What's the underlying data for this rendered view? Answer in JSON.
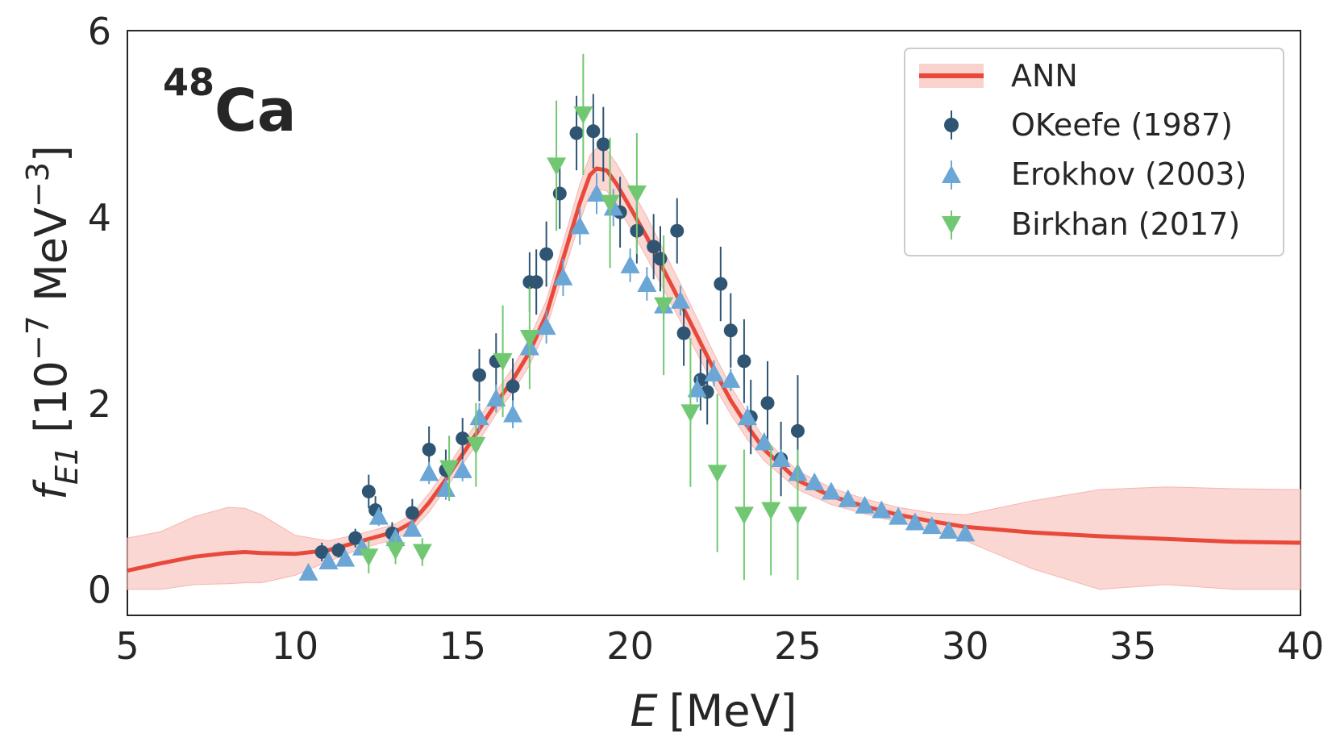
{
  "chart_data": {
    "type": "scatter",
    "annotation": {
      "mass": "48",
      "element": "Ca"
    },
    "xlabel": {
      "symbol": "E",
      "unit": "[MeV]"
    },
    "ylabel": {
      "symbol": "f",
      "sub": "E1",
      "unit_open": "[10",
      "exp": "−7",
      "unit_mid": " MeV",
      "exp2": "−3",
      "unit_close": "]"
    },
    "xlim": [
      5,
      40
    ],
    "ylim": [
      -0.28,
      6
    ],
    "xticks": [
      5,
      10,
      15,
      20,
      25,
      30,
      35,
      40
    ],
    "yticks": [
      0,
      2,
      4,
      6
    ],
    "grid": false,
    "legend_position": "top-right",
    "colors": {
      "ann_line": "#e8493a",
      "ann_band": "#f6b6ae",
      "okeefe": "#2f5573",
      "erokhov": "#6aa6d6",
      "birkhan": "#72c872"
    },
    "ann": {
      "name": "ANN",
      "x": [
        5,
        6,
        7,
        8,
        8.5,
        9,
        10,
        11,
        12,
        13,
        13.5,
        14,
        14.5,
        15,
        15.5,
        16,
        16.5,
        17,
        17.5,
        18,
        18.5,
        18.8,
        19,
        19.3,
        19.6,
        20,
        20.5,
        21,
        21.5,
        22,
        22.5,
        23,
        23.5,
        24,
        25,
        26,
        27,
        28,
        29,
        30,
        32,
        34,
        36,
        38,
        40
      ],
      "y": [
        0.2,
        0.28,
        0.35,
        0.39,
        0.4,
        0.39,
        0.38,
        0.42,
        0.52,
        0.62,
        0.72,
        0.93,
        1.18,
        1.45,
        1.72,
        2.0,
        2.25,
        2.55,
        2.95,
        3.55,
        4.15,
        4.45,
        4.52,
        4.5,
        4.35,
        4.1,
        3.78,
        3.43,
        3.08,
        2.72,
        2.36,
        2.03,
        1.75,
        1.5,
        1.17,
        1.0,
        0.89,
        0.8,
        0.73,
        0.67,
        0.61,
        0.57,
        0.54,
        0.51,
        0.5
      ],
      "lower": [
        0.0,
        0.0,
        0.05,
        0.06,
        0.07,
        0.07,
        0.15,
        0.3,
        0.44,
        0.54,
        0.63,
        0.83,
        1.08,
        1.34,
        1.6,
        1.88,
        2.12,
        2.41,
        2.8,
        3.38,
        3.95,
        4.25,
        4.3,
        4.28,
        4.13,
        3.88,
        3.56,
        3.22,
        2.88,
        2.53,
        2.19,
        1.88,
        1.61,
        1.38,
        1.07,
        0.91,
        0.81,
        0.72,
        0.64,
        0.52,
        0.22,
        0.0,
        0.05,
        0.0,
        0.0
      ],
      "upper": [
        0.55,
        0.62,
        0.78,
        0.88,
        0.87,
        0.8,
        0.58,
        0.52,
        0.6,
        0.7,
        0.81,
        1.03,
        1.28,
        1.56,
        1.84,
        2.12,
        2.38,
        2.7,
        3.1,
        3.72,
        4.35,
        4.66,
        4.74,
        4.72,
        4.57,
        4.32,
        4.0,
        3.64,
        3.28,
        2.91,
        2.53,
        2.18,
        1.89,
        1.62,
        1.27,
        1.09,
        0.97,
        0.88,
        0.82,
        0.8,
        0.95,
        1.07,
        1.1,
        1.08,
        1.07
      ]
    },
    "okeefe": {
      "name": "OKeefe (1987)",
      "x": [
        10.8,
        11.3,
        11.8,
        12.2,
        12.4,
        12.9,
        13.5,
        14.0,
        14.5,
        15.0,
        15.5,
        16.0,
        16.5,
        17.0,
        17.2,
        17.5,
        17.9,
        18.4,
        18.9,
        19.2,
        19.7,
        20.2,
        20.7,
        20.9,
        21.4,
        21.6,
        22.1,
        22.3,
        22.7,
        23.0,
        23.4,
        23.6,
        24.1,
        24.5,
        25.0
      ],
      "y": [
        0.4,
        0.42,
        0.55,
        1.05,
        0.85,
        0.6,
        0.82,
        1.5,
        1.28,
        1.62,
        2.3,
        2.45,
        2.18,
        3.3,
        3.3,
        3.6,
        4.25,
        4.9,
        4.92,
        4.78,
        4.05,
        3.85,
        3.68,
        3.55,
        3.85,
        2.75,
        2.25,
        2.12,
        3.28,
        2.78,
        2.45,
        1.85,
        2.0,
        1.4,
        1.7
      ],
      "err": [
        0.1,
        0.08,
        0.1,
        0.18,
        0.15,
        0.12,
        0.15,
        0.25,
        0.22,
        0.22,
        0.28,
        0.3,
        0.3,
        0.32,
        0.35,
        0.35,
        0.38,
        0.4,
        0.4,
        0.4,
        0.38,
        0.35,
        0.35,
        0.35,
        0.35,
        0.35,
        0.33,
        0.35,
        0.4,
        0.4,
        0.45,
        0.4,
        0.45,
        0.4,
        0.6
      ]
    },
    "erokhov": {
      "name": "Erokhov (2003)",
      "x": [
        10.4,
        11.0,
        11.5,
        12.0,
        12.5,
        13.0,
        13.5,
        14.0,
        14.5,
        15.0,
        15.5,
        16.0,
        16.5,
        17.0,
        17.5,
        18.0,
        18.5,
        19.0,
        19.5,
        20.0,
        20.5,
        21.0,
        21.5,
        22.0,
        22.5,
        23.0,
        23.5,
        24.0,
        24.5,
        25.0,
        25.5,
        26.0,
        26.5,
        27.0,
        27.5,
        28.0,
        28.5,
        29.0,
        29.5,
        30.0
      ],
      "y": [
        0.18,
        0.3,
        0.33,
        0.45,
        0.78,
        0.55,
        0.65,
        1.25,
        1.08,
        1.28,
        1.85,
        2.05,
        1.88,
        2.6,
        2.82,
        3.35,
        3.9,
        4.25,
        4.1,
        3.48,
        3.28,
        3.05,
        3.1,
        2.15,
        2.32,
        2.25,
        1.85,
        1.58,
        1.4,
        1.25,
        1.15,
        1.05,
        0.97,
        0.9,
        0.85,
        0.78,
        0.72,
        0.68,
        0.63,
        0.6
      ],
      "err": [
        0.05,
        0.06,
        0.06,
        0.08,
        0.1,
        0.08,
        0.08,
        0.12,
        0.12,
        0.12,
        0.15,
        0.15,
        0.15,
        0.18,
        0.18,
        0.2,
        0.2,
        0.22,
        0.2,
        0.18,
        0.18,
        0.16,
        0.16,
        0.14,
        0.14,
        0.12,
        0.12,
        0.1,
        0.1,
        0.08,
        0.07,
        0.06,
        0.06,
        0.05,
        0.05,
        0.05,
        0.04,
        0.04,
        0.04,
        0.04
      ]
    },
    "birkhan": {
      "name": "Birkhan (2017)",
      "x": [
        12.2,
        13.0,
        13.8,
        14.6,
        15.4,
        16.2,
        17.0,
        17.8,
        18.6,
        19.4,
        20.2,
        21.0,
        21.8,
        22.6,
        23.4,
        24.2,
        25.0
      ],
      "y": [
        0.35,
        0.42,
        0.4,
        1.3,
        1.55,
        2.45,
        2.7,
        4.55,
        5.1,
        4.15,
        4.25,
        3.05,
        1.9,
        1.25,
        0.8,
        0.85,
        0.8
      ],
      "err": [
        0.18,
        0.15,
        0.15,
        0.35,
        0.45,
        0.6,
        0.55,
        0.7,
        0.65,
        0.7,
        0.65,
        0.75,
        0.8,
        0.85,
        0.7,
        0.7,
        0.7
      ]
    }
  }
}
